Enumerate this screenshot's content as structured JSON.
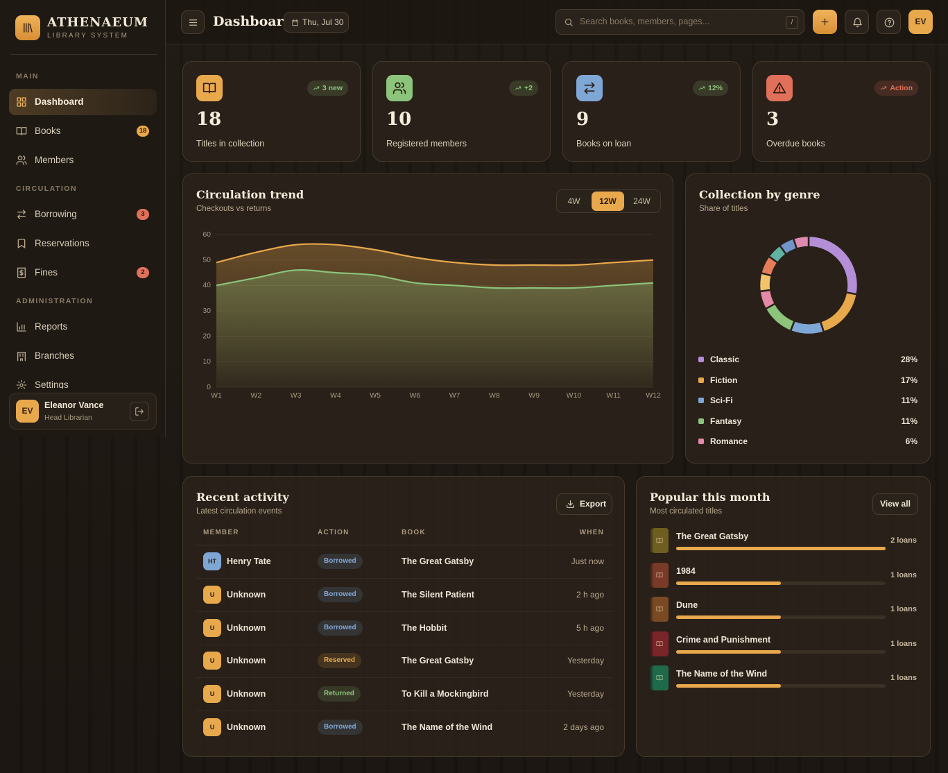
{
  "sidebar": {
    "brand": {
      "name": "ATHENAEUM",
      "tagline": "LIBRARY SYSTEM"
    },
    "sections": [
      {
        "title": "MAIN",
        "items": [
          {
            "label": "Dashboard"
          },
          {
            "label": "Books",
            "badge": 18,
            "badge_color": "#e8a84c"
          },
          {
            "label": "Members"
          }
        ]
      },
      {
        "title": "CIRCULATION",
        "items": [
          {
            "label": "Borrowing",
            "badge": 3,
            "badge_color": "#e0705a"
          },
          {
            "label": "Reservations"
          },
          {
            "label": "Fines",
            "badge": 2,
            "badge_color": "#e0705a"
          }
        ]
      },
      {
        "title": "ADMINISTRATION",
        "items": [
          {
            "label": "Reports"
          },
          {
            "label": "Branches"
          },
          {
            "label": "Settings"
          }
        ]
      }
    ],
    "user": {
      "initials": "EV",
      "name": "Eleanor Vance",
      "role": "Head Librarian"
    }
  },
  "header": {
    "title": "Dashboard",
    "date": "Thu, Jul 30",
    "search_placeholder": "Search books, members, pages...",
    "shortcut": "/",
    "avatar": "EV"
  },
  "stats": [
    {
      "value": 18,
      "label": "Titles in collection",
      "trend": "3 new",
      "trend_color": "#8cc47c",
      "icon_color": "#e8a84c"
    },
    {
      "value": 10,
      "label": "Registered members",
      "trend": "+2",
      "trend_color": "#8cc47c",
      "icon_color": "#8cc47c"
    },
    {
      "value": 9,
      "label": "Books on loan",
      "trend": "12%",
      "trend_color": "#8cc47c",
      "icon_color": "#7fa7d6"
    },
    {
      "value": 3,
      "label": "Overdue books",
      "trend": "Action",
      "trend_color": "#e0705a",
      "icon_color": "#e0705a"
    }
  ],
  "chart_data": [
    {
      "type": "line",
      "title": "Circulation trend",
      "subtitle": "Checkouts vs returns",
      "ranges": [
        "4W",
        "12W",
        "24W"
      ],
      "categories": [
        "W1",
        "W2",
        "W3",
        "W4",
        "W5",
        "W6",
        "W7",
        "W8",
        "W9",
        "W10",
        "W11",
        "W12"
      ],
      "series": [
        {
          "color": "#e8a84c",
          "values": [
            49,
            53,
            56,
            56,
            54,
            51,
            49,
            48,
            48,
            48,
            49,
            50
          ]
        },
        {
          "color": "#8cc47c",
          "values": [
            40,
            43,
            46,
            45,
            44,
            41,
            40,
            39,
            39,
            39,
            40,
            41
          ]
        }
      ],
      "ylim": [
        0,
        60
      ],
      "yticks": [
        0,
        10,
        20,
        30,
        40,
        50,
        60
      ],
      "grid": true
    },
    {
      "type": "pie",
      "title": "Collection by genre",
      "subtitle": "Share of titles",
      "donut": true,
      "categories": [
        "Classic",
        "Fiction",
        "Sci-Fi",
        "Fantasy",
        "Romance",
        null,
        null,
        null,
        null,
        null
      ],
      "values": [
        28,
        17,
        11,
        11,
        6,
        6,
        6,
        5,
        5,
        5
      ],
      "value_labels": [
        "28%",
        "17%",
        "11%",
        "11%",
        "6%",
        null,
        null,
        null,
        null,
        null
      ],
      "colors": [
        "#b48fd8",
        "#e8a84c",
        "#7fa7d6",
        "#8cc47c",
        "#e58aa6",
        "#f2c46a",
        "#e57c5a",
        "#5fb3a3",
        "#6f95c9",
        "#e08ab0"
      ]
    }
  ],
  "activity": {
    "title": "Recent activity",
    "subtitle": "Latest circulation events",
    "button": "Export",
    "columns": [
      "MEMBER",
      "ACTION",
      "BOOK",
      "WHEN"
    ],
    "rows": [
      {
        "initials": "HT",
        "avatar_color": "#7fa7d6",
        "member": "Henry Tate",
        "action": "Borrowed",
        "action_color": "#7fa7d6",
        "book": "The Great Gatsby",
        "when": "Just now"
      },
      {
        "initials": "U",
        "avatar_color": "#e8a84c",
        "member": "Unknown",
        "action": "Borrowed",
        "action_color": "#7fa7d6",
        "book": "The Silent Patient",
        "when": "2 h ago"
      },
      {
        "initials": "U",
        "avatar_color": "#e8a84c",
        "member": "Unknown",
        "action": "Borrowed",
        "action_color": "#7fa7d6",
        "book": "The Hobbit",
        "when": "5 h ago"
      },
      {
        "initials": "U",
        "avatar_color": "#e8a84c",
        "member": "Unknown",
        "action": "Reserved",
        "action_color": "#e8a84c",
        "book": "The Great Gatsby",
        "when": "Yesterday"
      },
      {
        "initials": "U",
        "avatar_color": "#e8a84c",
        "member": "Unknown",
        "action": "Returned",
        "action_color": "#8cc47c",
        "book": "To Kill a Mockingbird",
        "when": "Yesterday"
      },
      {
        "initials": "U",
        "avatar_color": "#e8a84c",
        "member": "Unknown",
        "action": "Borrowed",
        "action_color": "#7fa7d6",
        "book": "The Name of the Wind",
        "when": "2 days ago"
      }
    ]
  },
  "popular": {
    "title": "Popular this month",
    "subtitle": "Most circulated titles",
    "button": "View all",
    "books": [
      {
        "title": "The Great Gatsby",
        "cover_color": "#6e5e22"
      },
      {
        "title": "1984",
        "cover_color": "#7a3a28"
      },
      {
        "title": "Dune",
        "cover_color": "#7a4a25"
      },
      {
        "title": "Crime and Punishment",
        "cover_color": "#7a2528"
      },
      {
        "title": "The Name of the Wind",
        "cover_color": "#1f6a4a"
      }
    ],
    "values": [
      2,
      1,
      1,
      1,
      1
    ],
    "value_labels": [
      "2 loans",
      "1 loans",
      "1 loans",
      "1 loans",
      "1 loans"
    ],
    "bar_color": "#e8a84c"
  }
}
